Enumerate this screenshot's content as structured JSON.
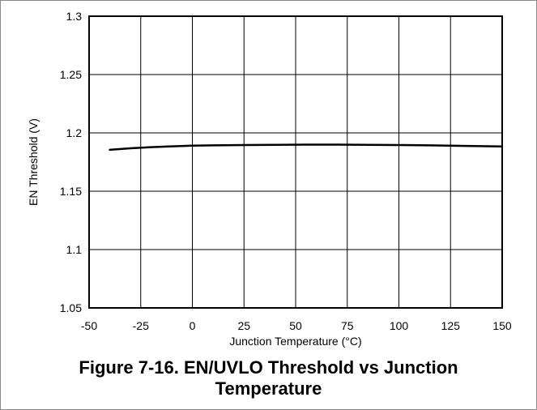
{
  "caption": {
    "line1": "Figure 7-16. EN/UVLO Threshold vs Junction",
    "line2": "Temperature"
  },
  "chart_data": {
    "type": "line",
    "title": "",
    "xlabel": "Junction Temperature (°C)",
    "ylabel": "EN Threshold (V)",
    "xlim": [
      -50,
      150
    ],
    "ylim": [
      1.05,
      1.3
    ],
    "x_ticks": [
      -50,
      -25,
      0,
      25,
      50,
      75,
      100,
      125,
      150
    ],
    "y_ticks": [
      1.05,
      1.1,
      1.15,
      1.2,
      1.25,
      1.3
    ],
    "x_tick_labels": [
      "-50",
      "-25",
      "0",
      "25",
      "50",
      "75",
      "100",
      "125",
      "150"
    ],
    "y_tick_labels": [
      "1.05",
      "1.1",
      "1.15",
      "1.2",
      "1.25",
      "1.3"
    ],
    "grid": true,
    "series": [
      {
        "x": [
          -40,
          -30,
          -20,
          -10,
          0,
          10,
          25,
          40,
          55,
          70,
          85,
          100,
          115,
          130,
          150
        ],
        "y": [
          1.1855,
          1.1868,
          1.1878,
          1.1885,
          1.189,
          1.1893,
          1.1896,
          1.1898,
          1.1899,
          1.1899,
          1.1898,
          1.1896,
          1.1893,
          1.1889,
          1.1884
        ],
        "color": "#000000"
      }
    ]
  }
}
